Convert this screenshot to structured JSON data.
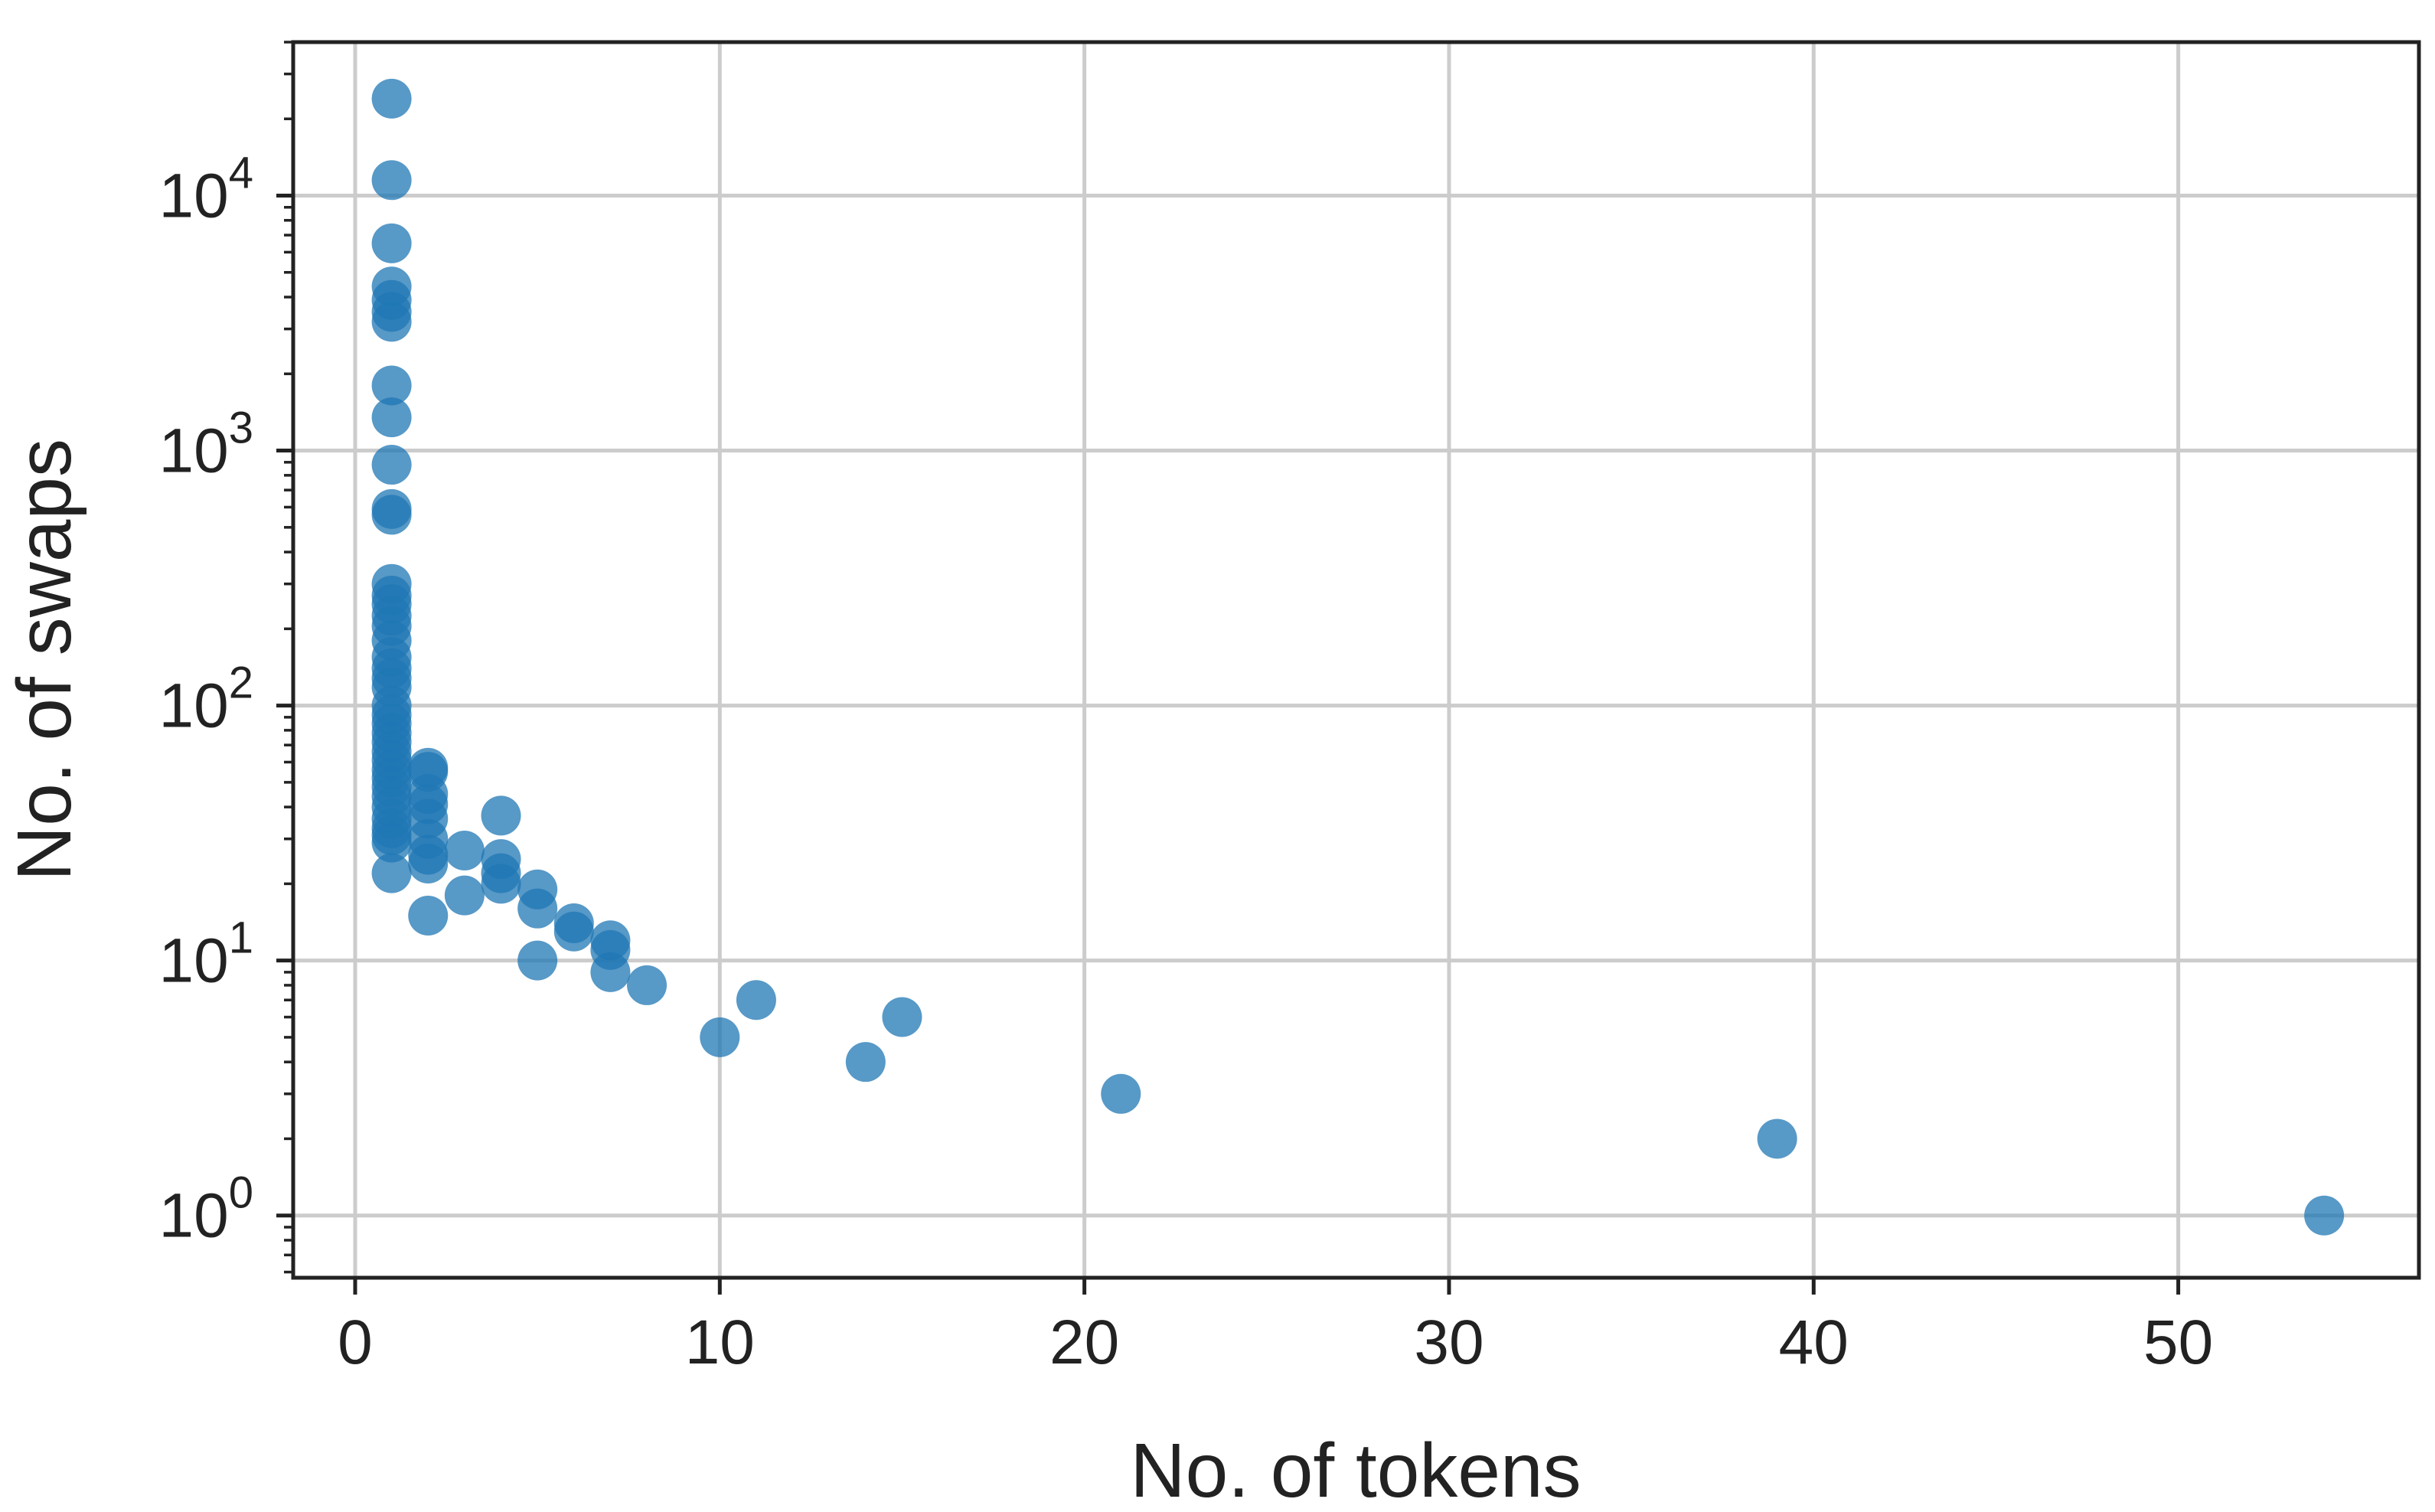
{
  "chart_data": {
    "type": "scatter",
    "title": "",
    "xlabel": "No. of tokens",
    "ylabel": "No. of swaps",
    "xlim": [
      -1.7,
      56.6
    ],
    "ylim": [
      0.57,
      40000
    ],
    "yscale": "log",
    "grid": true,
    "xticks": [
      "0",
      "10",
      "20",
      "30",
      "40",
      "50"
    ],
    "xtick_values": [
      0,
      10,
      20,
      30,
      40,
      50
    ],
    "yticks": [
      {
        "base": "10",
        "exp": "0"
      },
      {
        "base": "10",
        "exp": "1"
      },
      {
        "base": "10",
        "exp": "2"
      },
      {
        "base": "10",
        "exp": "3"
      },
      {
        "base": "10",
        "exp": "4"
      }
    ],
    "ytick_values": [
      1,
      10,
      100,
      1000,
      10000
    ],
    "point_color": "#1f77b4",
    "points": [
      [
        1,
        24000
      ],
      [
        1,
        11500
      ],
      [
        1,
        6500
      ],
      [
        1,
        4400
      ],
      [
        1,
        3900
      ],
      [
        1,
        3500
      ],
      [
        1,
        3200
      ],
      [
        1,
        1800
      ],
      [
        1,
        1350
      ],
      [
        1,
        880
      ],
      [
        1,
        590
      ],
      [
        1,
        560
      ],
      [
        1,
        300
      ],
      [
        1,
        270
      ],
      [
        1,
        250
      ],
      [
        1,
        225
      ],
      [
        1,
        205
      ],
      [
        1,
        180
      ],
      [
        1,
        155
      ],
      [
        1,
        140
      ],
      [
        1,
        128
      ],
      [
        1,
        118
      ],
      [
        1,
        100
      ],
      [
        1,
        92
      ],
      [
        1,
        85
      ],
      [
        1,
        78
      ],
      [
        1,
        72
      ],
      [
        1,
        66
      ],
      [
        1,
        61
      ],
      [
        1,
        56
      ],
      [
        1,
        52
      ],
      [
        1,
        48
      ],
      [
        1,
        44
      ],
      [
        1,
        40
      ],
      [
        1,
        36
      ],
      [
        1,
        33
      ],
      [
        1,
        31
      ],
      [
        1,
        29
      ],
      [
        1,
        22
      ],
      [
        2,
        57
      ],
      [
        2,
        55
      ],
      [
        2,
        45
      ],
      [
        2,
        41
      ],
      [
        2,
        36
      ],
      [
        2,
        30
      ],
      [
        2,
        26
      ],
      [
        2,
        24
      ],
      [
        2,
        15
      ],
      [
        3,
        27
      ],
      [
        3,
        18
      ],
      [
        4,
        37
      ],
      [
        4,
        25
      ],
      [
        4,
        22
      ],
      [
        4,
        20
      ],
      [
        5,
        19
      ],
      [
        5,
        16
      ],
      [
        5,
        10
      ],
      [
        6,
        14
      ],
      [
        6,
        13
      ],
      [
        7,
        12
      ],
      [
        7,
        11
      ],
      [
        7,
        9
      ],
      [
        8,
        8
      ],
      [
        10,
        5
      ],
      [
        11,
        7
      ],
      [
        14,
        4
      ],
      [
        15,
        6
      ],
      [
        21,
        3
      ],
      [
        39,
        2
      ],
      [
        54,
        1
      ]
    ]
  }
}
